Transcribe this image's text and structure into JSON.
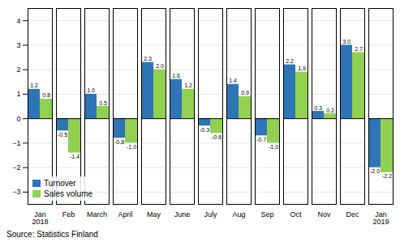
{
  "chart_data": {
    "type": "bar",
    "categories": [
      "Jan\n2018",
      "Feb",
      "March",
      "April",
      "May",
      "June",
      "July",
      "Aug",
      "Sep",
      "Oct",
      "Nov",
      "Dec",
      "Jan\n2019"
    ],
    "series": [
      {
        "name": "Turnover",
        "color": "#2E75B6",
        "values": [
          1.2,
          -0.5,
          1.0,
          -0.8,
          2.3,
          1.6,
          -0.3,
          1.4,
          -0.7,
          2.2,
          0.3,
          3.0,
          -2.0
        ],
        "value_labels": [
          "1.2",
          "-0.5",
          "1.0",
          "-0.8",
          "2.3",
          "1.6",
          "-0.3",
          "1.4",
          "-0.7",
          "2.2",
          "0.3",
          "3.0",
          "-2.0"
        ]
      },
      {
        "name": "Sales volume",
        "color": "#92D050",
        "values": [
          0.8,
          -1.4,
          0.5,
          -1.0,
          2.0,
          1.2,
          -0.6,
          0.9,
          -1.0,
          1.9,
          0.2,
          2.7,
          -2.2
        ],
        "value_labels": [
          "0.8",
          "-1.4",
          "0.5",
          "-1.0",
          "2.0",
          "1.2",
          "-0.6",
          "0.9",
          "-1.0",
          "1.9",
          "0.2",
          "2.7",
          "-2.2"
        ]
      }
    ],
    "ylim": [
      -3.5,
      4.5
    ],
    "yticks": [
      -3,
      -2,
      -1,
      0,
      1,
      2,
      3,
      4
    ],
    "grid": true,
    "legend": "lower left",
    "data_labels": true,
    "annotations": [
      "Source: Statistics Finland"
    ]
  }
}
